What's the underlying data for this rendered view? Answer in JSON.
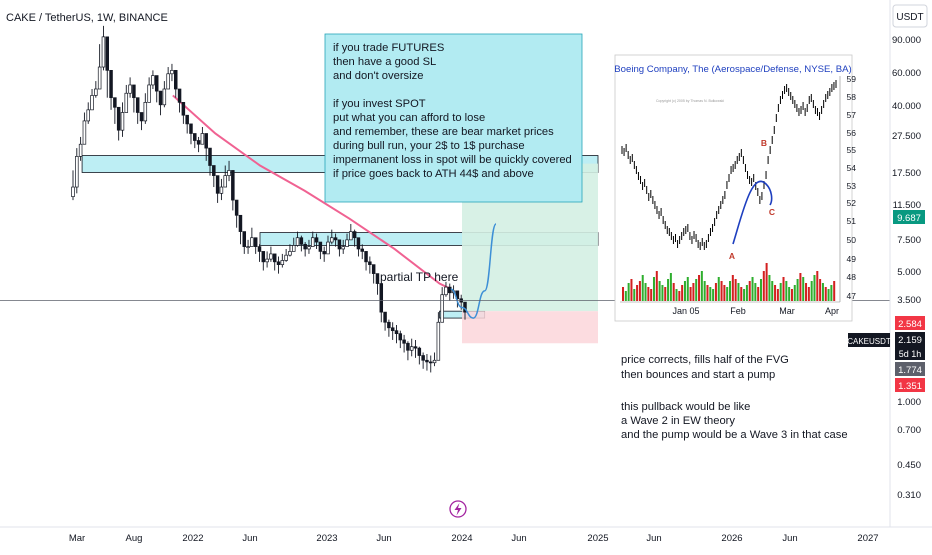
{
  "header": {
    "symbol_title": "CAKE / TetherUS, 1W, BINANCE"
  },
  "price_axis": {
    "unit_button": "USDT",
    "ticks": [
      "90.000",
      "60.000",
      "40.000",
      "27.500",
      "17.500",
      "11.500",
      "7.500",
      "5.000",
      "3.500",
      "2.584",
      "2.159",
      "1.774",
      "1.351",
      "1.000",
      "0.700",
      "0.450",
      "0.310"
    ],
    "badges": [
      {
        "label": "2.584",
        "value": 2.584,
        "color": "#f23645"
      },
      {
        "label": "CAKEUSDT",
        "value": 2.23,
        "color": "#131722"
      },
      {
        "label": "2.159",
        "value": 2.159,
        "color": "#131722"
      },
      {
        "label": "5d 1h",
        "value": 2.085,
        "color": "#131722"
      },
      {
        "label": "1.774",
        "value": 1.774,
        "color": "#5d606b"
      },
      {
        "label": "1.351",
        "value": 1.351,
        "color": "#f23645"
      }
    ]
  },
  "time_axis": {
    "labels": [
      "Mar",
      "Aug",
      "2022",
      "Jun",
      "2023",
      "Jun",
      "2024",
      "Jun",
      "2025",
      "Jun",
      "2026",
      "Jun",
      "2027"
    ]
  },
  "annotations": {
    "strategy_note": [
      "if you trade FUTURES",
      "then have a good SL",
      "and don't oversize",
      "",
      "if you invest SPOT",
      "put what you can afford to lose",
      "and remember, these are bear market prices",
      "during bull run, your 2$ to 1$ purchase",
      "impermanent loss in spot will be quickly covered",
      "if price goes back to ATH 44$ and above"
    ],
    "tp_label": "partial TP here",
    "analysis_note": [
      "price corrects, fills half of the FVG",
      "then bounces and start a pump",
      "",
      "this pullback would be like",
      "a Wave 2 in EW theory",
      "and the pump would be a Wave 3 in that case"
    ]
  },
  "inset_chart": {
    "title": "Boeing Company, The (Aerospace/Defense, NYSE, BA)",
    "copyright": "Copyright (c) 2005 by Thomas N. Bulkowski",
    "price_ticks": [
      "59",
      "58",
      "57",
      "56",
      "55",
      "54",
      "53",
      "52",
      "51",
      "50",
      "49",
      "48",
      "47"
    ],
    "time_ticks": [
      "Jan 05",
      "Feb",
      "Mar",
      "Apr"
    ],
    "point_labels": [
      "A",
      "B",
      "C"
    ],
    "colors": {
      "bars": "#000000",
      "arc": "#1e3fbf",
      "labels": "#c0392b",
      "volume_up": "#2eae2e",
      "volume_down": "#d32020"
    }
  },
  "chart_data": {
    "type": "candlestick",
    "title": "CAKE / TetherUS, 1W, BINANCE",
    "y_scale": "log",
    "ylim": [
      0.28,
      110
    ],
    "x": [
      "2021-03",
      "2021-08",
      "2022",
      "2022-06",
      "2023",
      "2023-06",
      "2024",
      "2024-06",
      "2025",
      "2025-06",
      "2026",
      "2026-06",
      "2027"
    ],
    "weekly_closes": [
      7.5,
      10.5,
      12.0,
      15.5,
      17.5,
      20.5,
      22.0,
      28.0,
      39.0,
      27.0,
      20.0,
      18.0,
      14.0,
      17.0,
      21.0,
      23.0,
      20.0,
      17.0,
      15.5,
      19.0,
      23.0,
      25.5,
      21.5,
      18.5,
      22.0,
      26.0,
      27.0,
      22.0,
      19.0,
      16.5,
      15.0,
      13.5,
      12.5,
      12.0,
      13.5,
      11.5,
      9.5,
      8.5,
      7.0,
      7.5,
      8.5,
      9.0,
      6.5,
      5.5,
      4.6,
      3.9,
      3.9,
      4.3,
      3.9,
      3.7,
      3.3,
      3.4,
      3.6,
      3.3,
      3.2,
      3.35,
      3.55,
      3.7,
      3.95,
      4.3,
      4.0,
      3.8,
      3.9,
      4.3,
      4.1,
      3.7,
      3.6,
      4.1,
      4.3,
      4.2,
      3.8,
      3.9,
      4.2,
      4.6,
      4.3,
      3.8,
      3.7,
      3.3,
      3.2,
      2.9,
      2.6,
      1.9,
      1.7,
      1.6,
      1.55,
      1.5,
      1.4,
      1.35,
      1.25,
      1.3,
      1.28,
      1.18,
      1.12,
      1.1,
      1.09,
      1.12,
      1.7,
      2.3,
      2.5,
      2.35,
      2.4,
      2.2,
      2.12,
      1.9
    ],
    "weekly_highs": [
      9.0,
      11.5,
      13.0,
      17.0,
      19.0,
      22.0,
      24.0,
      36.0,
      44.0,
      31.0,
      23.0,
      20.0,
      16.0,
      19.0,
      23.0,
      25.0,
      22.0,
      19.0,
      17.0,
      21.0,
      25.0,
      27.0,
      24.0,
      20.0,
      24.0,
      28.0,
      29.0,
      25.0,
      21.0,
      18.0,
      16.5,
      15.0,
      13.5,
      13.0,
      14.5,
      13.0,
      10.5,
      9.5,
      8.0,
      8.2,
      9.5,
      10.0,
      7.3,
      6.2,
      5.3,
      4.3,
      4.2,
      4.8,
      4.3,
      4.0,
      3.6,
      3.7,
      3.9,
      3.6,
      3.5,
      3.6,
      3.8,
      4.0,
      4.3,
      4.6,
      4.4,
      4.1,
      4.2,
      4.6,
      4.5,
      4.0,
      3.9,
      4.4,
      4.7,
      4.5,
      4.1,
      4.2,
      4.5,
      5.0,
      4.7,
      4.1,
      4.0,
      3.6,
      3.5,
      3.2,
      2.9,
      2.2,
      1.9,
      1.75,
      1.7,
      1.65,
      1.55,
      1.48,
      1.38,
      1.42,
      1.4,
      1.3,
      1.22,
      1.2,
      1.18,
      1.22,
      1.9,
      2.5,
      2.65,
      2.6,
      2.55,
      2.4,
      2.3,
      2.1
    ],
    "weekly_lows": [
      6.5,
      7.0,
      10.0,
      13.5,
      15.0,
      18.0,
      20.0,
      25.0,
      27.0,
      20.0,
      17.5,
      15.0,
      12.5,
      13.0,
      19.0,
      20.0,
      17.0,
      15.0,
      14.0,
      15.0,
      21.0,
      22.0,
      19.0,
      16.5,
      18.0,
      23.0,
      24.0,
      20.0,
      17.0,
      15.0,
      13.5,
      12.0,
      11.5,
      11.0,
      12.0,
      10.0,
      8.5,
      7.5,
      6.3,
      6.5,
      7.5,
      8.0,
      5.8,
      4.8,
      4.0,
      3.6,
      3.6,
      3.9,
      3.6,
      3.3,
      3.0,
      3.1,
      3.3,
      3.0,
      2.9,
      3.1,
      3.3,
      3.5,
      3.7,
      3.9,
      3.7,
      3.5,
      3.6,
      3.9,
      3.8,
      3.4,
      3.3,
      3.8,
      4.0,
      3.9,
      3.5,
      3.6,
      3.9,
      4.2,
      3.9,
      3.5,
      3.4,
      3.0,
      2.9,
      2.6,
      2.3,
      1.7,
      1.55,
      1.45,
      1.4,
      1.35,
      1.28,
      1.22,
      1.12,
      1.17,
      1.15,
      1.07,
      1.02,
      1.0,
      0.98,
      1.05,
      1.5,
      2.1,
      2.25,
      2.15,
      2.2,
      2.0,
      1.95,
      1.75
    ],
    "series": [
      {
        "name": "moving average",
        "x": [
          "2021-11",
          "2022-03",
          "2022-07",
          "2022-11",
          "2023-03",
          "2023-07",
          "2023-11",
          "2023-12"
        ],
        "values": [
          20.5,
          13.5,
          9.5,
          7.2,
          5.3,
          3.8,
          2.6,
          2.45
        ]
      }
    ],
    "projection": {
      "x": [
        "2023-12",
        "2024-01",
        "2024-02",
        "2024-03",
        "2024-04"
      ],
      "values": [
        2.45,
        2.0,
        1.78,
        2.4,
        5.0
      ]
    },
    "zones": [
      {
        "kind": "supply",
        "y": [
          8.8,
          10.6
        ],
        "x": [
          "2021-02",
          "2025-01"
        ],
        "color": "#b2ebf2"
      },
      {
        "kind": "partial TP",
        "y": [
          3.95,
          4.55
        ],
        "x": [
          "2022-07",
          "2025-01"
        ],
        "color": "#b2ebf2"
      },
      {
        "kind": "FVG",
        "y": [
          1.78,
          1.92
        ],
        "x": [
          "2023-11",
          "2024-03"
        ],
        "color": "#b2ebf2"
      },
      {
        "kind": "target",
        "y": [
          1.92,
          9.7
        ],
        "x": [
          "2024-01",
          "2025-01"
        ],
        "color": "#d4efe3"
      },
      {
        "kind": "stop",
        "y": [
          1.35,
          1.92
        ],
        "x": [
          "2024-01",
          "2025-01"
        ],
        "color": "#fbd6da"
      }
    ],
    "reference_line": 2.159
  }
}
